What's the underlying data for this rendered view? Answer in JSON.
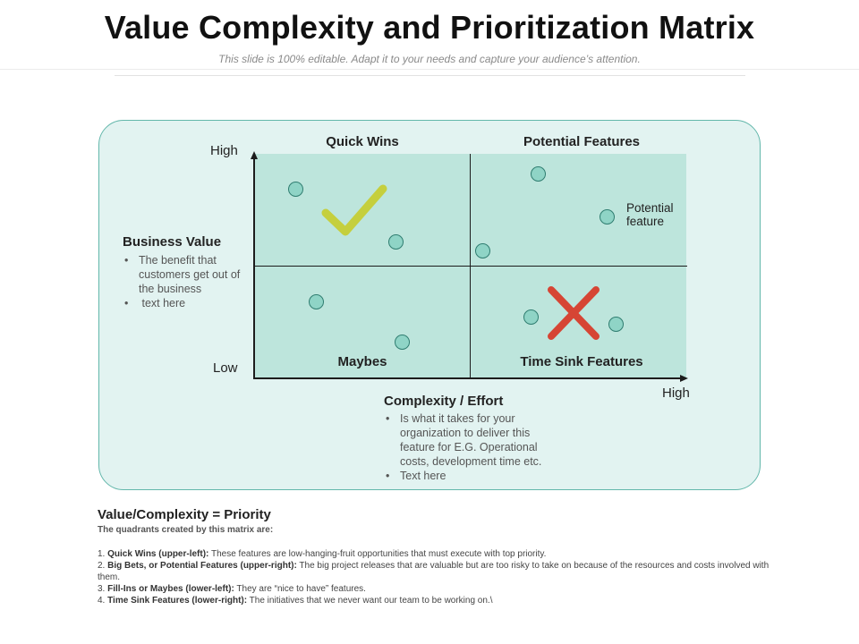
{
  "header": {
    "title": "Value Complexity and Prioritization Matrix",
    "subtitle": "This slide is 100% editable. Adapt it to your needs and capture your audience’s attention."
  },
  "matrix": {
    "y_axis": {
      "high": "High",
      "low": "Low"
    },
    "x_axis": {
      "high": "High"
    },
    "quadrants": {
      "top_left": "Quick Wins",
      "top_right": "Potential Features",
      "bottom_left": "Maybes",
      "bottom_right": "Time Sink Features"
    },
    "point_label": "Potential feature",
    "marks": {
      "check": "checkmark-icon",
      "cross": "cross-icon"
    },
    "colors": {
      "panel": "#e2f3f1",
      "panel_border": "#63b7ab",
      "quadrant": "#bde5dc",
      "dot": "#8fd4c6",
      "check": "#c5cf3d",
      "cross": "#d64534"
    }
  },
  "business_value": {
    "title": "Business Value",
    "bullets": [
      "The benefit that customers get out of the business",
      " text here"
    ]
  },
  "complexity": {
    "title": "Complexity / Effort",
    "bullets": [
      "Is what it takes for your organization to deliver this feature for E.G. Operational costs, development time etc.",
      "Text here"
    ]
  },
  "notes": {
    "title": "Value/Complexity = Priority",
    "subtitle": "The quadrants created by this matrix are:",
    "items": [
      {
        "num": "1.",
        "label": "Quick Wins (upper-left):",
        "text": " These features are low-hanging-fruit opportunities that must execute with top priority."
      },
      {
        "num": "2.",
        "label": "Big Bets, or Potential Features (upper-right):",
        "text": " The big project releases that are valuable but are too risky to take on because of the resources and costs involved with them."
      },
      {
        "num": "3.",
        "label": "Fill-Ins or Maybes (lower-left):",
        "text": " They are “nice to have” features."
      },
      {
        "num": "4.",
        "label": "Time Sink Features (lower-right):",
        "text": " The initiatives that we never want our team to be working on.\\"
      }
    ]
  }
}
